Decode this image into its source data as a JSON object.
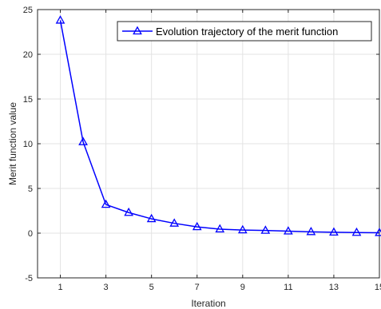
{
  "chart_data": {
    "type": "line",
    "xlabel": "Iteration",
    "ylabel": "Merit function value",
    "xlim": [
      0,
      15
    ],
    "ylim": [
      -5,
      25
    ],
    "xticks": [
      1,
      3,
      5,
      7,
      9,
      11,
      13,
      15
    ],
    "yticks": [
      -5,
      0,
      5,
      10,
      15,
      20,
      25
    ],
    "grid": true,
    "legend_position": "top-right",
    "series": [
      {
        "name": "Evolution trajectory of the merit function",
        "color": "#0000ff",
        "marker": "triangle",
        "x": [
          1,
          2,
          3,
          4,
          5,
          6,
          7,
          8,
          9,
          10,
          11,
          12,
          13,
          14,
          15
        ],
        "y": [
          23.8,
          10.2,
          3.2,
          2.3,
          1.6,
          1.1,
          0.7,
          0.45,
          0.35,
          0.3,
          0.22,
          0.15,
          0.1,
          0.07,
          0.05
        ]
      }
    ]
  }
}
